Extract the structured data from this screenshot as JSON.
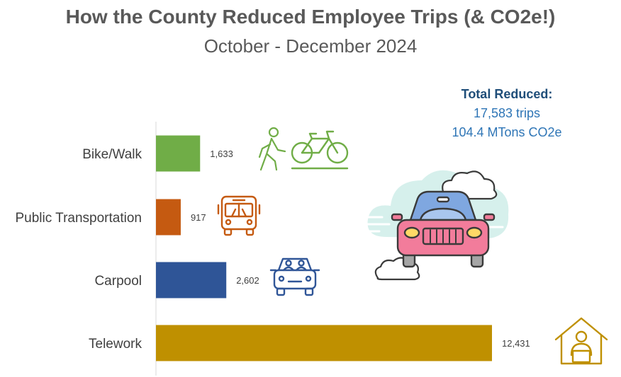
{
  "title": "How the County Reduced Employee Trips (& CO2e!)",
  "subtitle": "October - December 2024",
  "summary": {
    "heading": "Total Reduced:",
    "trips": "17,583 trips",
    "co2": "104.4 MTons CO2e"
  },
  "chart_data": {
    "type": "bar",
    "orientation": "horizontal",
    "title": "",
    "xlabel": "",
    "ylabel": "",
    "categories": [
      "Bike/Walk",
      "Public Transportation",
      "Carpool",
      "Telework"
    ],
    "values": [
      1633,
      917,
      2602,
      12431
    ],
    "value_labels": [
      "1,633",
      "917",
      "2,602",
      "12,431"
    ],
    "colors": [
      "#70AD47",
      "#C55A11",
      "#2F5597",
      "#BF9000"
    ],
    "xlim": [
      0,
      12431
    ],
    "grid": false,
    "legend": "none"
  },
  "icons": {
    "bike_walk": [
      "walking-person-icon",
      "bicycle-icon"
    ],
    "public_transportation": "bus-icon",
    "carpool": "carpool-car-icon",
    "telework": "house-with-person-icon",
    "decoration": "car-with-clouds-icon"
  }
}
